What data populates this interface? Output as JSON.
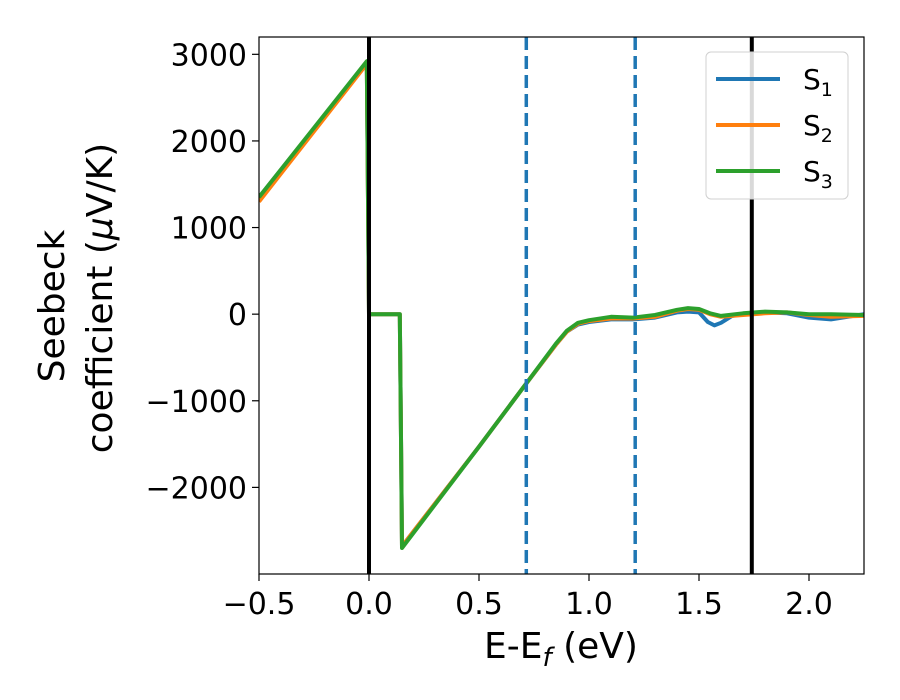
{
  "chart_data": {
    "type": "line",
    "title": "",
    "xlabel": "E-E",
    "xlabel_sub": "f",
    "xlabel_unit": " (eV)",
    "ylabel_line1": "Seebeck",
    "ylabel_line2": "coefficient  (",
    "ylabel_mu": "μ",
    "ylabel_unit": "V/K)",
    "xlim": [
      -0.5,
      2.25
    ],
    "ylim": [
      -3000,
      3200
    ],
    "xticks": [
      -0.5,
      0.0,
      0.5,
      1.0,
      1.5,
      2.0
    ],
    "xtick_labels": [
      "−0.5",
      "0.0",
      "0.5",
      "1.0",
      "1.5",
      "2.0"
    ],
    "yticks": [
      -2000,
      -1000,
      0,
      1000,
      2000,
      3000
    ],
    "ytick_labels": [
      "−2000",
      "−1000",
      "0",
      "1000",
      "2000",
      "3000"
    ],
    "grid": false,
    "legend_position": "top-right",
    "vertical_lines": [
      {
        "x": 0.0,
        "style": "solid",
        "color": "#000000"
      },
      {
        "x": 0.715,
        "style": "dashed",
        "color": "#1f77b4"
      },
      {
        "x": 1.21,
        "style": "dashed",
        "color": "#1f77b4"
      },
      {
        "x": 1.74,
        "style": "solid",
        "color": "#000000"
      }
    ],
    "series": [
      {
        "name": "S",
        "sub": "1",
        "color": "#1f77b4",
        "x": [
          -0.5,
          -0.01,
          0.0,
          0.14,
          0.145,
          0.15,
          0.5,
          0.7,
          0.85,
          0.9,
          0.95,
          1.0,
          1.1,
          1.2,
          1.3,
          1.4,
          1.45,
          1.5,
          1.54,
          1.57,
          1.6,
          1.65,
          1.7,
          1.8,
          1.9,
          2.0,
          2.1,
          2.25
        ],
        "y": [
          1350,
          2900,
          0,
          0,
          -1300,
          -2680,
          -1530,
          -850,
          -350,
          -200,
          -120,
          -90,
          -60,
          -60,
          -40,
          20,
          30,
          20,
          -90,
          -130,
          -100,
          -20,
          0,
          20,
          10,
          -40,
          -60,
          0
        ]
      },
      {
        "name": "S",
        "sub": "2",
        "color": "#ff7f0e",
        "x": [
          -0.5,
          -0.01,
          0.0,
          0.14,
          0.145,
          0.15,
          0.5,
          0.7,
          0.85,
          0.9,
          0.95,
          1.0,
          1.1,
          1.2,
          1.3,
          1.4,
          1.45,
          1.5,
          1.55,
          1.6,
          1.7,
          1.8,
          1.9,
          2.0,
          2.1,
          2.25
        ],
        "y": [
          1300,
          2890,
          0,
          0,
          -1300,
          -2680,
          -1530,
          -850,
          -350,
          -200,
          -110,
          -80,
          -50,
          -50,
          -30,
          40,
          60,
          50,
          0,
          -30,
          -10,
          10,
          20,
          -10,
          -30,
          -20
        ]
      },
      {
        "name": "S",
        "sub": "3",
        "color": "#2ca02c",
        "x": [
          -0.5,
          -0.01,
          0.0,
          0.14,
          0.145,
          0.15,
          0.5,
          0.7,
          0.85,
          0.9,
          0.95,
          1.0,
          1.1,
          1.2,
          1.3,
          1.4,
          1.45,
          1.5,
          1.55,
          1.6,
          1.7,
          1.8,
          1.9,
          2.0,
          2.1,
          2.25
        ],
        "y": [
          1350,
          2920,
          0,
          0,
          -1300,
          -2700,
          -1530,
          -850,
          -340,
          -190,
          -100,
          -70,
          -30,
          -40,
          -10,
          50,
          70,
          60,
          10,
          -20,
          10,
          30,
          20,
          0,
          0,
          -10
        ]
      }
    ]
  }
}
